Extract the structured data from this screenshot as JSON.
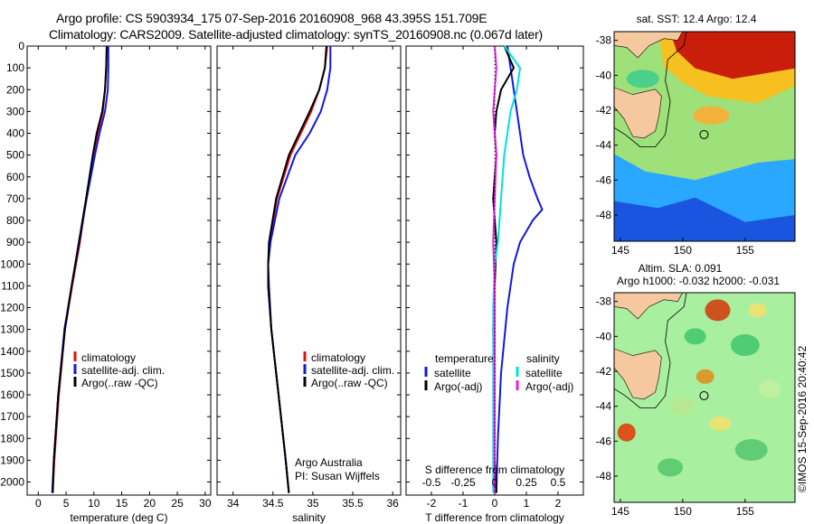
{
  "title": {
    "line1": "Argo profile: CS 5903934_175 07-Sep-2016 20160908_968 43.395S 151.709E",
    "line2": "Climatology: CARS2009. Satellite-adjusted climatology: synTS_20160908.nc (0.067d later)"
  },
  "colors": {
    "climatology": "#e01010",
    "satellite": "#1018e0",
    "argo": "#000000",
    "sal_satellite": "#00e0e0",
    "sal_argo": "#e020e0"
  },
  "chart_data": [
    {
      "type": "line",
      "id": "temperature",
      "xlabel": "temperature (deg C)",
      "ylabel": "",
      "xlim": [
        -2,
        31
      ],
      "ylim": [
        2060,
        0
      ],
      "xticks": [
        0,
        5,
        10,
        15,
        20,
        25,
        30
      ],
      "yticks": [
        0,
        100,
        200,
        300,
        400,
        500,
        600,
        700,
        800,
        900,
        1000,
        1100,
        1200,
        1300,
        1400,
        1500,
        1600,
        1700,
        1800,
        1900,
        2000
      ],
      "legend": [
        "climatology",
        "satellite-adj. clim.",
        "Argo(..raw -QC)"
      ],
      "legend_position": "center",
      "series": [
        {
          "name": "climatology",
          "depth": [
            0,
            100,
            200,
            300,
            400,
            500,
            700,
            900,
            1100,
            1300,
            1600,
            1900,
            2050
          ],
          "values": [
            12.3,
            12.2,
            12.0,
            11.6,
            10.7,
            9.9,
            8.6,
            7.5,
            6.1,
            4.8,
            3.7,
            2.9,
            2.6
          ]
        },
        {
          "name": "satellite-adj. clim.",
          "depth": [
            0,
            100,
            200,
            300,
            400,
            500,
            700,
            900,
            1100,
            1300,
            1600,
            1900,
            2050
          ],
          "values": [
            12.6,
            12.6,
            12.5,
            12.0,
            11.0,
            10.2,
            8.7,
            7.4,
            6.0,
            4.7,
            3.6,
            2.8,
            2.5
          ]
        },
        {
          "name": "Argo(..raw -QC)",
          "depth": [
            0,
            100,
            200,
            300,
            400,
            500,
            700,
            900,
            1100,
            1300,
            1600,
            1900,
            2050
          ],
          "values": [
            12.3,
            12.2,
            12.0,
            11.5,
            10.5,
            9.8,
            8.6,
            7.3,
            6.0,
            4.8,
            3.6,
            2.8,
            2.6
          ]
        }
      ]
    },
    {
      "type": "line",
      "id": "salinity",
      "xlabel": "salinity",
      "xlim": [
        33.8,
        36.1
      ],
      "ylim": [
        2060,
        0
      ],
      "xticks": [
        34,
        34.5,
        35,
        35.5,
        36
      ],
      "legend": [
        "climatology",
        "satellite-adj. clim.",
        "Argo(..raw -QC)"
      ],
      "annotation": [
        "Argo Australia",
        "PI: Susan Wijffels"
      ],
      "series": [
        {
          "name": "climatology",
          "depth": [
            0,
            100,
            200,
            300,
            400,
            500,
            700,
            900,
            1000,
            1100,
            1300,
            1600,
            1900,
            2050
          ],
          "values": [
            35.18,
            35.15,
            35.08,
            34.98,
            34.85,
            34.72,
            34.55,
            34.46,
            34.44,
            34.44,
            34.48,
            34.57,
            34.66,
            34.7
          ]
        },
        {
          "name": "satellite-adj. clim.",
          "depth": [
            0,
            100,
            200,
            300,
            400,
            500,
            700,
            900,
            1000,
            1100,
            1300,
            1600,
            1900,
            2050
          ],
          "values": [
            35.22,
            35.22,
            35.18,
            35.1,
            34.96,
            34.78,
            34.58,
            34.47,
            34.44,
            34.45,
            34.48,
            34.57,
            34.66,
            34.7
          ]
        },
        {
          "name": "Argo(..raw -QC)",
          "depth": [
            0,
            100,
            200,
            300,
            400,
            500,
            700,
            900,
            1000,
            1100,
            1300,
            1600,
            1900,
            2050
          ],
          "values": [
            35.17,
            35.15,
            35.08,
            34.96,
            34.83,
            34.7,
            34.54,
            34.45,
            34.44,
            34.44,
            34.48,
            34.57,
            34.66,
            34.7
          ]
        }
      ]
    },
    {
      "type": "line",
      "id": "difference",
      "xlabel": "T difference from climatology",
      "xlabel_top": "S difference from climatology",
      "xlim": [
        -2.8,
        2.8
      ],
      "ylim": [
        2060,
        0
      ],
      "xticks": [
        -2,
        -1,
        0,
        1,
        2
      ],
      "xtick_labels": [
        "-2",
        "-1",
        "0",
        "1",
        "2"
      ],
      "xticks_top_labels": [
        "-0.5",
        "-0.25",
        "0",
        "0.25",
        "0.5"
      ],
      "legend_groups": [
        {
          "title": "temperature",
          "items": [
            "satellite",
            "Argo(-adj)"
          ]
        },
        {
          "title": "salinity",
          "items": [
            "satellite",
            "Argo(-adj)"
          ]
        }
      ],
      "series": [
        {
          "name": "temperature satellite",
          "depth": [
            0,
            100,
            200,
            300,
            400,
            500,
            600,
            700,
            750,
            800,
            900,
            1000,
            1200,
            1500,
            1800,
            2050
          ],
          "values": [
            0.4,
            0.5,
            0.6,
            0.7,
            0.8,
            0.9,
            1.1,
            1.35,
            1.5,
            1.2,
            0.8,
            0.6,
            0.4,
            0.2,
            0.1,
            0.05
          ]
        },
        {
          "name": "temperature Argo(-adj)",
          "depth": [
            0,
            100,
            200,
            300,
            400,
            500,
            700,
            900,
            1100,
            1300,
            1600,
            1900,
            2050
          ],
          "values": [
            0.3,
            0.6,
            0.2,
            0.05,
            0.0,
            0.05,
            -0.05,
            0.05,
            0.0,
            -0.05,
            0.0,
            0.0,
            0.05
          ]
        },
        {
          "name": "salinity satellite",
          "depth": [
            0,
            100,
            200,
            300,
            400,
            500,
            700,
            800,
            900,
            1000,
            1200,
            1500,
            1800,
            2050
          ],
          "values": [
            0.3,
            0.8,
            0.7,
            0.5,
            0.4,
            0.3,
            0.2,
            0.15,
            0.1,
            0.0,
            -0.05,
            -0.05,
            -0.05,
            -0.05
          ]
        },
        {
          "name": "salinity Argo(-adj)",
          "depth": [
            0,
            100,
            200,
            300,
            400,
            500,
            700,
            900,
            1100,
            1300,
            1600,
            1900,
            2050
          ],
          "values": [
            0.0,
            0.05,
            0.0,
            -0.05,
            0.0,
            0.05,
            0.0,
            -0.05,
            0.0,
            0.0,
            0.0,
            0.0,
            0.0
          ]
        }
      ]
    },
    {
      "type": "heatmap",
      "id": "sst-map",
      "title": "sat. SST: 12.4  Argo: 12.4",
      "xlim": [
        144.5,
        159
      ],
      "ylim": [
        -49.5,
        -37.5
      ],
      "xticks": [
        145,
        150,
        155
      ],
      "yticks": [
        -38,
        -40,
        -42,
        -44,
        -46,
        -48
      ],
      "argo_position": [
        151.709,
        -43.395
      ]
    },
    {
      "type": "heatmap",
      "id": "sla-map",
      "title": "Altim. SLA: 0.091",
      "subtitle": "Argo h1000: -0.032 h2000: -0.031",
      "xlim": [
        144.5,
        159
      ],
      "ylim": [
        -49.5,
        -37.5
      ],
      "xticks": [
        145,
        150,
        155
      ],
      "yticks": [
        -38,
        -40,
        -42,
        -44,
        -46,
        -48
      ],
      "argo_position": [
        151.709,
        -43.395
      ]
    }
  ],
  "credit": "©IMOS 15-Sep-2016 20:40:42"
}
